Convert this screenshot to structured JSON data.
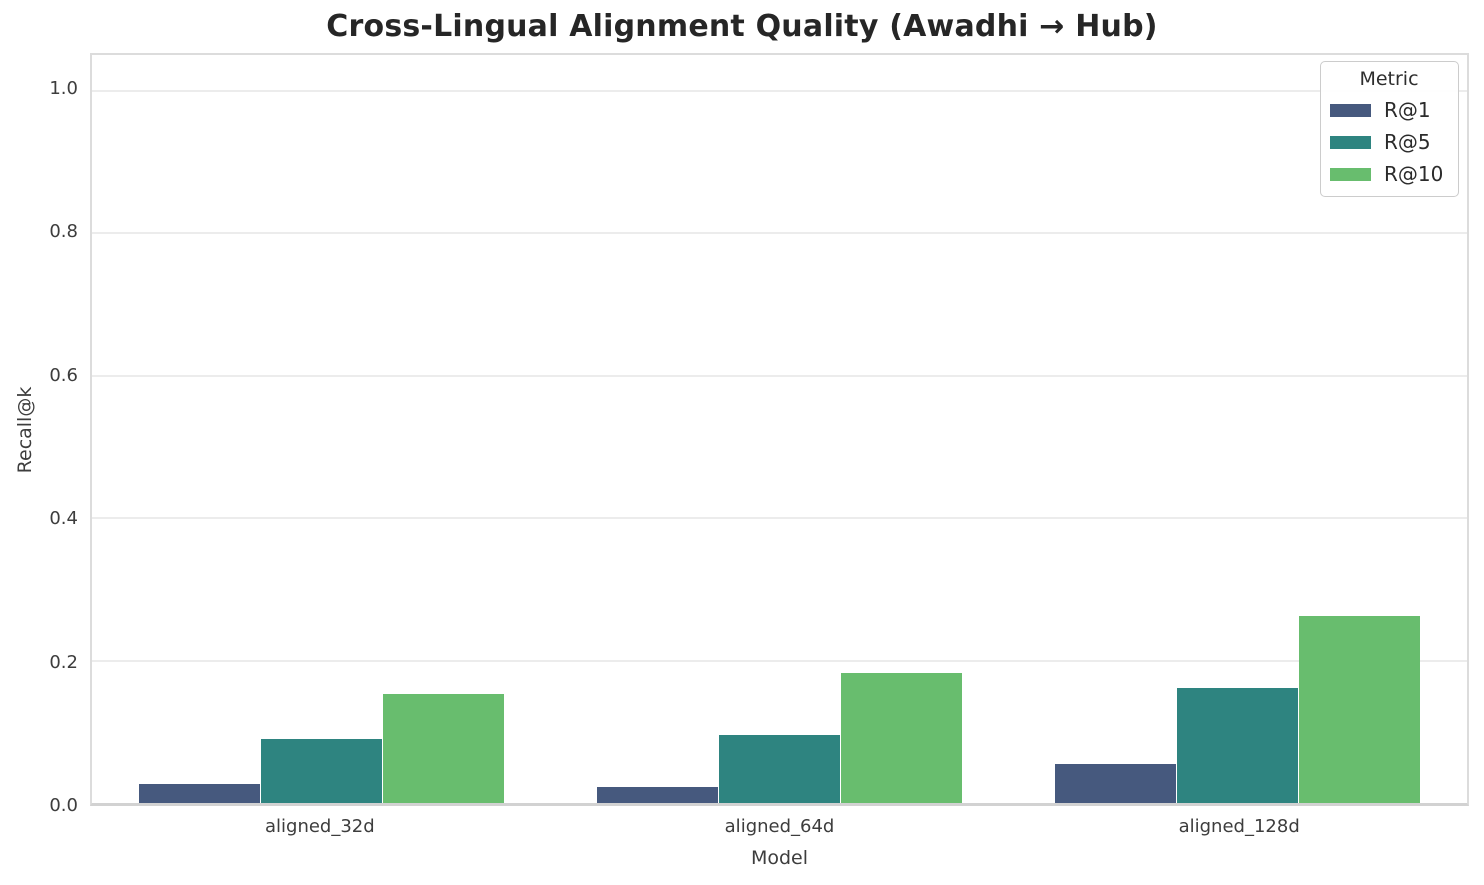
{
  "title": "Cross-Lingual Alignment Quality (Awadhi → Hub)",
  "chart_data": {
    "type": "bar",
    "title": "Cross-Lingual Alignment Quality (Awadhi → Hub)",
    "categories": [
      "aligned_32d",
      "aligned_64d",
      "aligned_128d"
    ],
    "series": [
      {
        "name": "R@1",
        "color": "#46597e",
        "values": [
          0.027,
          0.022,
          0.055
        ]
      },
      {
        "name": "R@5",
        "color": "#2e8480",
        "values": [
          0.09,
          0.095,
          0.161
        ]
      },
      {
        "name": "R@10",
        "color": "#68bd6e",
        "values": [
          0.153,
          0.183,
          0.262
        ]
      }
    ],
    "xlabel": "Model",
    "ylabel": "Recall@k",
    "ylim": [
      0,
      1.05
    ],
    "yticks": [
      0.0,
      0.2,
      0.4,
      0.6,
      0.8,
      1.0
    ],
    "ytick_labels": [
      "0.0",
      "0.2",
      "0.4",
      "0.6",
      "0.8",
      "1.0"
    ],
    "grid": true,
    "legend": {
      "title": "Metric",
      "position": "upper right"
    }
  },
  "colors": {
    "background": "#ffffff",
    "grid": "#ececec",
    "spine": "#dcdcdc",
    "title_text": "#262626",
    "tick_text": "#3d3d3d"
  }
}
